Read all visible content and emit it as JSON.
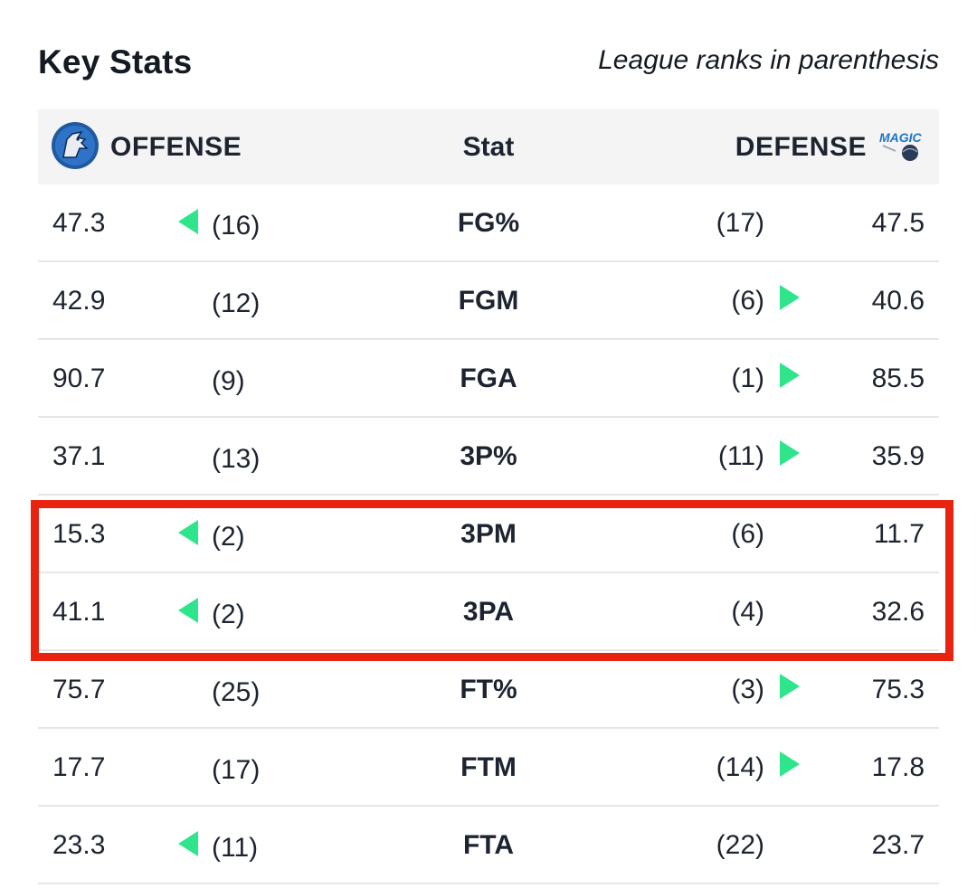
{
  "title": "Key Stats",
  "subtitle": "League ranks in parenthesis",
  "header": {
    "offense_label": "OFFENSE",
    "stat_label": "Stat",
    "defense_label": "DEFENSE",
    "offense_logo": "mavericks-logo",
    "defense_logo": "magic-logo"
  },
  "colors": {
    "advantage_arrow": "#2ee58c",
    "highlight": "#e8230f",
    "header_bg": "#f4f4f5"
  },
  "rows": [
    {
      "stat": "FG%",
      "off_value": "47.3",
      "off_rank": "(16)",
      "def_rank": "(17)",
      "def_value": "47.5",
      "arrow": "left"
    },
    {
      "stat": "FGM",
      "off_value": "42.9",
      "off_rank": "(12)",
      "def_rank": "(6)",
      "def_value": "40.6",
      "arrow": "right"
    },
    {
      "stat": "FGA",
      "off_value": "90.7",
      "off_rank": "(9)",
      "def_rank": "(1)",
      "def_value": "85.5",
      "arrow": "right"
    },
    {
      "stat": "3P%",
      "off_value": "37.1",
      "off_rank": "(13)",
      "def_rank": "(11)",
      "def_value": "35.9",
      "arrow": "right"
    },
    {
      "stat": "3PM",
      "off_value": "15.3",
      "off_rank": "(2)",
      "def_rank": "(6)",
      "def_value": "11.7",
      "arrow": "left",
      "highlighted": true
    },
    {
      "stat": "3PA",
      "off_value": "41.1",
      "off_rank": "(2)",
      "def_rank": "(4)",
      "def_value": "32.6",
      "arrow": "left",
      "highlighted": true
    },
    {
      "stat": "FT%",
      "off_value": "75.7",
      "off_rank": "(25)",
      "def_rank": "(3)",
      "def_value": "75.3",
      "arrow": "right"
    },
    {
      "stat": "FTM",
      "off_value": "17.7",
      "off_rank": "(17)",
      "def_rank": "(14)",
      "def_value": "17.8",
      "arrow": "right"
    },
    {
      "stat": "FTA",
      "off_value": "23.3",
      "off_rank": "(11)",
      "def_rank": "(22)",
      "def_value": "23.7",
      "arrow": "left"
    }
  ]
}
